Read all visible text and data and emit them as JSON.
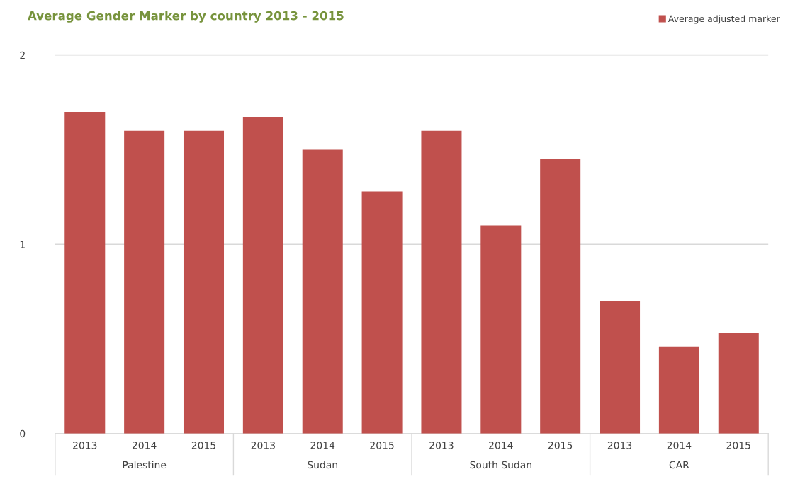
{
  "chart_data": {
    "type": "bar",
    "title": "Average Gender Marker by country 2013 - 2015",
    "categories": [
      "2013",
      "2014",
      "2015",
      "2013",
      "2014",
      "2015",
      "2013",
      "2014",
      "2015",
      "2013",
      "2014",
      "2015"
    ],
    "series": [
      {
        "name": "Average adjusted marker",
        "color": "#c0504d",
        "values": [
          1.7,
          1.6,
          1.6,
          1.67,
          1.5,
          1.28,
          1.6,
          1.1,
          1.45,
          0.7,
          0.46,
          0.53
        ]
      }
    ],
    "annotations": [
      "Palestine",
      "Sudan",
      "South Sudan",
      "CAR"
    ],
    "ylim": [
      0,
      2
    ],
    "yticks": [
      0,
      1,
      2
    ],
    "grid": "y",
    "legend": "top right"
  }
}
